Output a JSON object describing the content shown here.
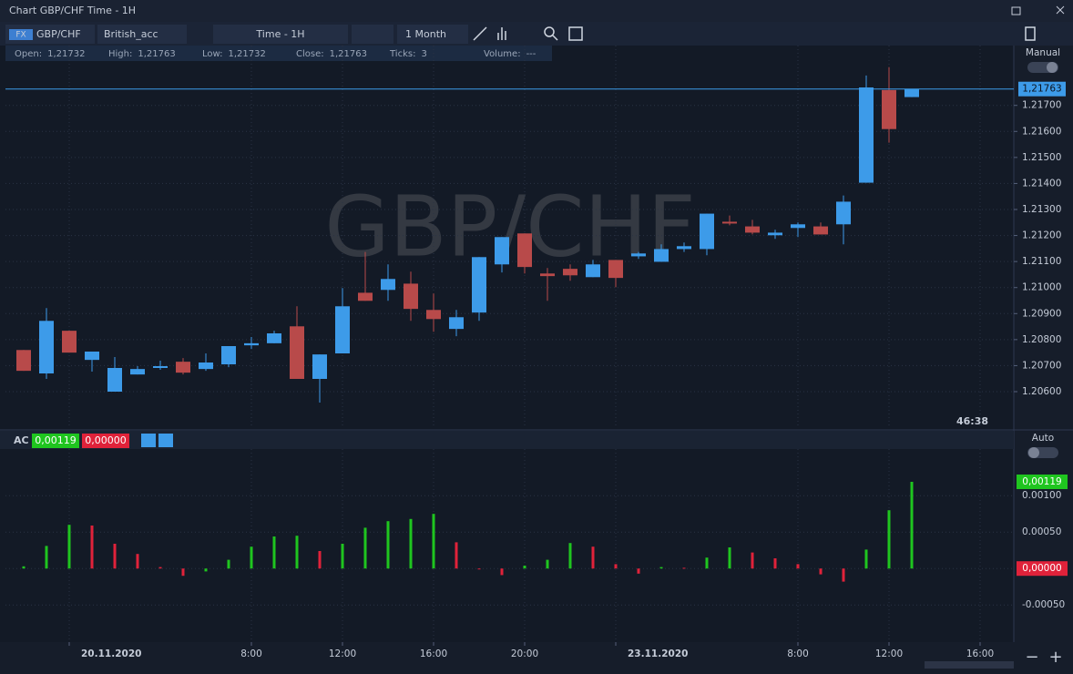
{
  "ui": {
    "window_title": "Chart GBP/CHF Time - 1H",
    "fx_badge": "FX",
    "symbol": "GBP/CHF",
    "account": "British_acc",
    "timeframe": "Time - 1H",
    "range": "1 Month",
    "info": [
      {
        "label": "Open:",
        "value": "1,21732"
      },
      {
        "label": "High:",
        "value": "1,21763"
      },
      {
        "label": "Low:",
        "value": "1,21732"
      },
      {
        "label": "Close:",
        "value": "1,21763"
      },
      {
        "label": "Ticks:",
        "value": "3"
      },
      {
        "label": "Volume:",
        "value": "---"
      }
    ],
    "price_scale_mode": "Manual",
    "indicator_scale_mode": "Auto",
    "countdown": "46:38",
    "indicator_name": "AC"
  },
  "chart_data": [
    {
      "type": "candlestick",
      "watermark": "GBP/CHF",
      "up_color": "#3d9be9",
      "down_color": "#b84a4a",
      "grid": true,
      "open": [
        1.2076,
        1.2067,
        1.20834,
        1.20722,
        1.206,
        1.20666,
        1.20691,
        1.20715,
        1.20687,
        1.20705,
        1.20778,
        1.20786,
        1.20851,
        1.20649,
        1.20747,
        1.2098,
        1.20991,
        1.21015,
        1.20914,
        1.20841,
        1.20904,
        1.21089,
        1.21208,
        1.21054,
        1.21072,
        1.2104,
        1.21106,
        1.2112,
        1.21099,
        1.21148,
        1.21148,
        1.21253,
        1.21235,
        1.21201,
        1.21229,
        1.21235,
        1.21243,
        1.21403,
        1.21759,
        1.21732
      ],
      "high": [
        1.2076,
        1.20921,
        1.20834,
        1.20754,
        1.20733,
        1.20698,
        1.20719,
        1.20729,
        1.20747,
        1.20775,
        1.2081,
        1.20834,
        1.20928,
        1.20743,
        1.20998,
        1.21137,
        1.21089,
        1.21061,
        1.20977,
        1.20914,
        1.21117,
        1.21194,
        1.21208,
        1.21075,
        1.21089,
        1.21106,
        1.21106,
        1.21137,
        1.21166,
        1.21173,
        1.21284,
        1.21277,
        1.2126,
        1.21222,
        1.2125,
        1.2125,
        1.21354,
        1.21815,
        1.21847,
        1.21763
      ],
      "low": [
        1.2068,
        1.20649,
        1.2075,
        1.20677,
        1.206,
        1.20666,
        1.20684,
        1.20666,
        1.2068,
        1.20694,
        1.20764,
        1.20786,
        1.20649,
        1.20558,
        1.20747,
        1.20949,
        1.20949,
        1.20872,
        1.2083,
        1.20813,
        1.20872,
        1.21058,
        1.21054,
        1.20949,
        1.21026,
        1.2104,
        1.21001,
        1.2111,
        1.21099,
        1.21137,
        1.21124,
        1.21239,
        1.21204,
        1.21187,
        1.21194,
        1.21204,
        1.21166,
        1.21403,
        1.21557,
        1.21732
      ],
      "close": [
        1.2068,
        1.20872,
        1.2075,
        1.20754,
        1.20691,
        1.20687,
        1.20698,
        1.20673,
        1.20712,
        1.20775,
        1.20786,
        1.20824,
        1.20649,
        1.20743,
        1.20928,
        1.20949,
        1.21033,
        1.20918,
        1.20879,
        1.20886,
        1.21117,
        1.21194,
        1.21079,
        1.21044,
        1.21047,
        1.21089,
        1.21037,
        1.21131,
        1.21148,
        1.21159,
        1.21284,
        1.21246,
        1.21211,
        1.21211,
        1.21243,
        1.21204,
        1.2133,
        1.21769,
        1.21609,
        1.21763
      ],
      "xlim": [
        -0.8,
        43.48
      ],
      "ylim": [
        1.2046,
        1.2193
      ],
      "yticks": [
        {
          "value": 1.206,
          "label": "1.20600"
        },
        {
          "value": 1.207,
          "label": "1.20700"
        },
        {
          "value": 1.208,
          "label": "1.20800"
        },
        {
          "value": 1.209,
          "label": "1.20900"
        },
        {
          "value": 1.21,
          "label": "1.21000"
        },
        {
          "value": 1.211,
          "label": "1.21100"
        },
        {
          "value": 1.212,
          "label": "1.21200"
        },
        {
          "value": 1.213,
          "label": "1.21300"
        },
        {
          "value": 1.214,
          "label": "1.21400"
        },
        {
          "value": 1.215,
          "label": "1.21500"
        },
        {
          "value": 1.216,
          "label": "1.21600"
        },
        {
          "value": 1.217,
          "label": "1.21700"
        }
      ],
      "last_price": {
        "value": 1.21763,
        "label": "1,21763"
      }
    },
    {
      "type": "bar",
      "name": "AC",
      "up_color": "#1fc51f",
      "down_color": "#e0223a",
      "grid": true,
      "values": [
        3e-05,
        0.00031,
        0.0006,
        0.00059,
        0.00034,
        0.0002,
        2e-05,
        -0.0001,
        -4e-05,
        0.00012,
        0.0003,
        0.00044,
        0.00045,
        0.00024,
        0.00034,
        0.00056,
        0.00065,
        0.00068,
        0.00075,
        0.00036,
        -1e-05,
        -9e-05,
        4e-05,
        0.00012,
        0.00035,
        0.0003,
        6e-05,
        -7e-05,
        2e-05,
        1e-05,
        0.00015,
        0.00029,
        0.00022,
        0.00014,
        6e-05,
        -8e-05,
        -0.00018,
        0.00026,
        0.0008,
        0.00119
      ],
      "xlim": [
        -0.8,
        43.48
      ],
      "ylim": [
        -0.00101,
        0.00164
      ],
      "yticks": [
        {
          "value": 0.001,
          "label": "0.00100"
        },
        {
          "value": 0.0005,
          "label": "0.00050"
        },
        {
          "value": -0.0005,
          "label": "-0.00050"
        }
      ],
      "xticks": [
        {
          "value": 2,
          "label": "20.11.2020"
        },
        {
          "value": 10,
          "label": "8:00"
        },
        {
          "value": 14,
          "label": "12:00"
        },
        {
          "value": 18,
          "label": "16:00"
        },
        {
          "value": 22,
          "label": "20:00"
        },
        {
          "value": 26,
          "label": "23.11.2020"
        },
        {
          "value": 34,
          "label": "8:00"
        },
        {
          "value": 38,
          "label": "12:00"
        },
        {
          "value": 42,
          "label": "16:00"
        }
      ],
      "last_value": {
        "value": 0.00119,
        "label": "0,00119"
      },
      "zero_value": {
        "value": 0,
        "label": "0,00000"
      }
    }
  ]
}
